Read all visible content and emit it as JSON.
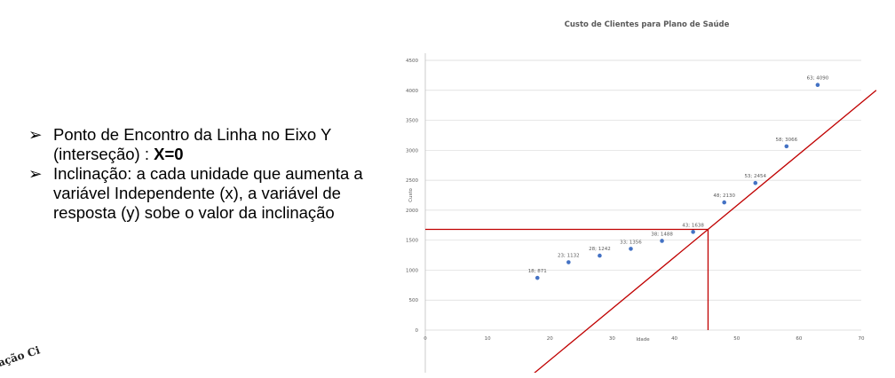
{
  "bullets": [
    {
      "marker": "➢",
      "text": "Ponto de Encontro da Linha no Eixo Y (interseção) : ",
      "bold": "X=0"
    },
    {
      "marker": "➢",
      "text": "Inclinação: a cada unidade que aumenta a variável Independente (x), a variável de resposta (y) sobe o valor da inclinação",
      "bold": ""
    }
  ],
  "logo_text": "ação Ci",
  "colors": {
    "points": "#4472C4",
    "lines": "#C00000",
    "grid": "#D9D9D9",
    "text": "#595959"
  },
  "chart_data": {
    "type": "scatter",
    "title": "Custo de Clientes para Plano de Saúde",
    "xlabel": "Idade",
    "ylabel": "Custo",
    "xlim": [
      0,
      70
    ],
    "ylim": [
      0,
      4500
    ],
    "xticks": [
      0,
      10,
      20,
      30,
      40,
      50,
      60,
      70
    ],
    "yticks": [
      0,
      500,
      1000,
      1500,
      2000,
      2500,
      3000,
      3500,
      4000,
      4500
    ],
    "grid": true,
    "points": [
      {
        "x": 18,
        "y": 871,
        "label": "18; 871"
      },
      {
        "x": 23,
        "y": 1132,
        "label": "23; 1132"
      },
      {
        "x": 28,
        "y": 1242,
        "label": "28; 1242"
      },
      {
        "x": 33,
        "y": 1356,
        "label": "33; 1356"
      },
      {
        "x": 38,
        "y": 1488,
        "label": "38; 1488"
      },
      {
        "x": 43,
        "y": 1638,
        "label": "43; 1638"
      },
      {
        "x": 48,
        "y": 2130,
        "label": "48; 2130"
      },
      {
        "x": 53,
        "y": 2454,
        "label": "53; 2454"
      },
      {
        "x": 58,
        "y": 3066,
        "label": "58; 3066"
      },
      {
        "x": 63,
        "y": 4090,
        "label": "63; 4090"
      }
    ],
    "annotations": {
      "trend_line": {
        "x": [
          14.2,
          72.4
        ],
        "y": [
          -1000,
          4000
        ]
      },
      "horizontal_guide": {
        "x": [
          0,
          45.4
        ],
        "y": [
          1680,
          1680
        ]
      },
      "vertical_guide": {
        "x": [
          45.4,
          45.4
        ],
        "y": [
          1680,
          0
        ]
      }
    }
  }
}
